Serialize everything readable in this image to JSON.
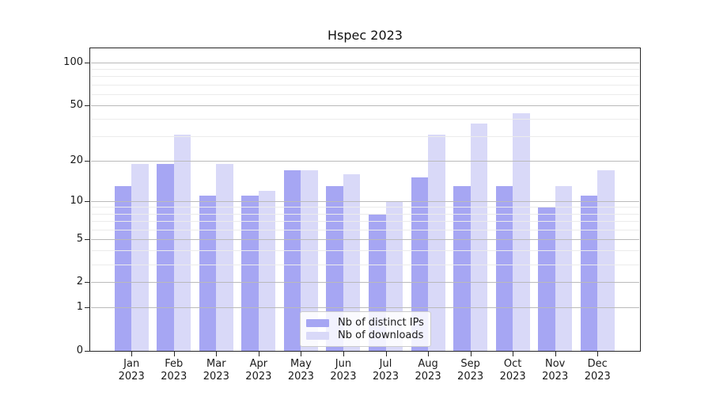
{
  "title": "Hspec 2023",
  "chart_data": {
    "type": "bar",
    "title": "Hspec 2023",
    "categories": [
      "Jan 2023",
      "Feb 2023",
      "Mar 2023",
      "Apr 2023",
      "May 2023",
      "Jun 2023",
      "Jul 2023",
      "Aug 2023",
      "Sep 2023",
      "Oct 2023",
      "Nov 2023",
      "Dec 2023"
    ],
    "x_tick_months": [
      "Jan",
      "Feb",
      "Mar",
      "Apr",
      "May",
      "Jun",
      "Jul",
      "Aug",
      "Sep",
      "Oct",
      "Nov",
      "Dec"
    ],
    "x_tick_year": "2023",
    "series": [
      {
        "name": "Nb of distinct IPs",
        "color": "#a6a6f3",
        "values": [
          13,
          19,
          11,
          11,
          17,
          13,
          8,
          15,
          13,
          13,
          9,
          11
        ]
      },
      {
        "name": "Nb of downloads",
        "color": "#d9d9f8",
        "values": [
          19,
          31,
          19,
          12,
          17,
          16,
          10,
          31,
          37,
          44,
          13,
          17
        ]
      }
    ],
    "yscale": "log1p",
    "ylim": [
      0,
      126
    ],
    "y_major_ticks": [
      0,
      1,
      2,
      5,
      10,
      20,
      50,
      100
    ],
    "y_minor_gridlines": [
      3,
      4,
      6,
      7,
      8,
      9,
      30,
      40,
      60,
      70,
      80,
      90
    ],
    "grid": "on",
    "legend_position": "lower center",
    "colors": {
      "bar_distinct_ips": "#a6a6f3",
      "bar_downloads": "#d9d9f8",
      "grid_major": "#bababa",
      "grid_minor": "#ebebeb",
      "spine": "#262626",
      "text": "#1a1a1a",
      "legend_border": "#cccccc",
      "legend_background": "rgba(255,255,255,0.85)"
    }
  }
}
